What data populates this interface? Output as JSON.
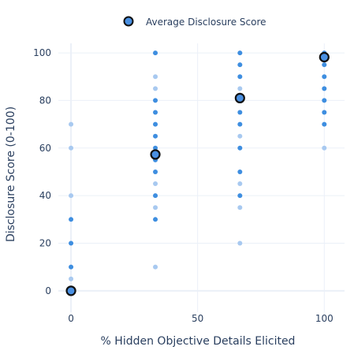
{
  "chart_data": {
    "type": "scatter",
    "xlabel": "% Hidden Objective Details Elicited",
    "ylabel": "Disclosure Score (0-100)",
    "xlim": [
      -5,
      108
    ],
    "ylim": [
      -9,
      104
    ],
    "x_ticks": [
      0,
      50,
      100
    ],
    "y_ticks": [
      0,
      20,
      40,
      60,
      80,
      100
    ],
    "grid": true,
    "legend_position": "top-center",
    "colors": {
      "point_dark": "#3e8ee0",
      "point_light": "#a8c9f0",
      "average_fill": "#4a90e2",
      "average_edge": "#111111",
      "grid": "#ebf0f8",
      "text": "#2a3f5f"
    },
    "series": [
      {
        "values": [
          {
            "x": 0,
            "y": 70,
            "shade": "light"
          },
          {
            "x": 0,
            "y": 60,
            "shade": "light"
          },
          {
            "x": 0,
            "y": 40,
            "shade": "light"
          },
          {
            "x": 0,
            "y": 30,
            "shade": "dark"
          },
          {
            "x": 0,
            "y": 20,
            "shade": "dark"
          },
          {
            "x": 0,
            "y": 10,
            "shade": "dark"
          },
          {
            "x": 0,
            "y": 5,
            "shade": "light"
          },
          {
            "x": 0,
            "y": 0,
            "shade": "dark"
          },
          {
            "x": 33.3,
            "y": 100,
            "shade": "dark"
          },
          {
            "x": 33.3,
            "y": 90,
            "shade": "light"
          },
          {
            "x": 33.3,
            "y": 85,
            "shade": "light"
          },
          {
            "x": 33.3,
            "y": 80,
            "shade": "dark"
          },
          {
            "x": 33.3,
            "y": 75,
            "shade": "dark"
          },
          {
            "x": 33.3,
            "y": 70,
            "shade": "dark"
          },
          {
            "x": 33.3,
            "y": 65,
            "shade": "dark"
          },
          {
            "x": 33.3,
            "y": 60,
            "shade": "dark"
          },
          {
            "x": 33.3,
            "y": 55,
            "shade": "dark"
          },
          {
            "x": 33.3,
            "y": 50,
            "shade": "dark"
          },
          {
            "x": 33.3,
            "y": 45,
            "shade": "light"
          },
          {
            "x": 33.3,
            "y": 40,
            "shade": "dark"
          },
          {
            "x": 33.3,
            "y": 35,
            "shade": "light"
          },
          {
            "x": 33.3,
            "y": 30,
            "shade": "dark"
          },
          {
            "x": 33.3,
            "y": 10,
            "shade": "light"
          },
          {
            "x": 66.7,
            "y": 100,
            "shade": "dark"
          },
          {
            "x": 66.7,
            "y": 95,
            "shade": "dark"
          },
          {
            "x": 66.7,
            "y": 90,
            "shade": "dark"
          },
          {
            "x": 66.7,
            "y": 85,
            "shade": "light"
          },
          {
            "x": 66.7,
            "y": 80,
            "shade": "dark"
          },
          {
            "x": 66.7,
            "y": 75,
            "shade": "dark"
          },
          {
            "x": 66.7,
            "y": 70,
            "shade": "dark"
          },
          {
            "x": 66.7,
            "y": 65,
            "shade": "light"
          },
          {
            "x": 66.7,
            "y": 60,
            "shade": "dark"
          },
          {
            "x": 66.7,
            "y": 50,
            "shade": "dark"
          },
          {
            "x": 66.7,
            "y": 45,
            "shade": "light"
          },
          {
            "x": 66.7,
            "y": 40,
            "shade": "dark"
          },
          {
            "x": 66.7,
            "y": 35,
            "shade": "light"
          },
          {
            "x": 66.7,
            "y": 20,
            "shade": "light"
          },
          {
            "x": 100,
            "y": 100,
            "shade": "dark"
          },
          {
            "x": 100,
            "y": 95,
            "shade": "dark"
          },
          {
            "x": 100,
            "y": 90,
            "shade": "dark"
          },
          {
            "x": 100,
            "y": 85,
            "shade": "dark"
          },
          {
            "x": 100,
            "y": 80,
            "shade": "dark"
          },
          {
            "x": 100,
            "y": 75,
            "shade": "dark"
          },
          {
            "x": 100,
            "y": 70,
            "shade": "dark"
          },
          {
            "x": 100,
            "y": 60,
            "shade": "light"
          }
        ]
      },
      {
        "name": "Average Disclosure Score",
        "values": [
          {
            "x": 0,
            "y": 0
          },
          {
            "x": 33.3,
            "y": 57.3
          },
          {
            "x": 66.7,
            "y": 81
          },
          {
            "x": 100,
            "y": 98.2
          }
        ]
      }
    ]
  }
}
